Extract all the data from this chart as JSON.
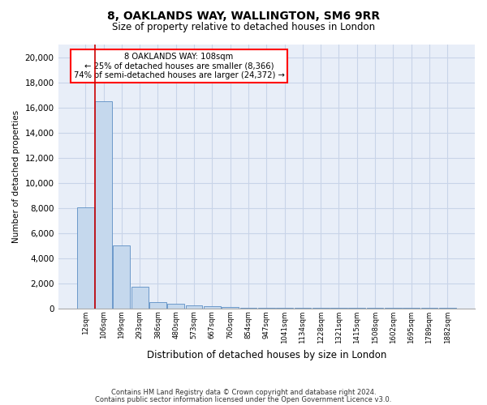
{
  "title1": "8, OAKLANDS WAY, WALLINGTON, SM6 9RR",
  "title2": "Size of property relative to detached houses in London",
  "xlabel": "Distribution of detached houses by size in London",
  "ylabel": "Number of detached properties",
  "footer1": "Contains HM Land Registry data © Crown copyright and database right 2024.",
  "footer2": "Contains public sector information licensed under the Open Government Licence v3.0.",
  "annotation_line1": "8 OAKLANDS WAY: 108sqm",
  "annotation_line2": "← 25% of detached houses are smaller (8,366)",
  "annotation_line3": "74% of semi-detached houses are larger (24,372) →",
  "bar_color": "#c5d8ed",
  "bar_edge_color": "#5b8ec4",
  "categories": [
    "12sqm",
    "106sqm",
    "199sqm",
    "293sqm",
    "386sqm",
    "480sqm",
    "573sqm",
    "667sqm",
    "760sqm",
    "854sqm",
    "947sqm",
    "1041sqm",
    "1134sqm",
    "1228sqm",
    "1321sqm",
    "1415sqm",
    "1508sqm",
    "1602sqm",
    "1695sqm",
    "1789sqm",
    "1882sqm"
  ],
  "values": [
    8050,
    16500,
    5000,
    1700,
    500,
    340,
    200,
    140,
    90,
    55,
    35,
    22,
    15,
    10,
    7,
    5,
    3,
    2,
    2,
    1,
    1
  ],
  "ylim": [
    0,
    21000
  ],
  "yticks": [
    0,
    2000,
    4000,
    6000,
    8000,
    10000,
    12000,
    14000,
    16000,
    18000,
    20000
  ],
  "grid_color": "#c8d4e8",
  "background_color": "#ffffff",
  "plot_bg_color": "#e8eef8"
}
